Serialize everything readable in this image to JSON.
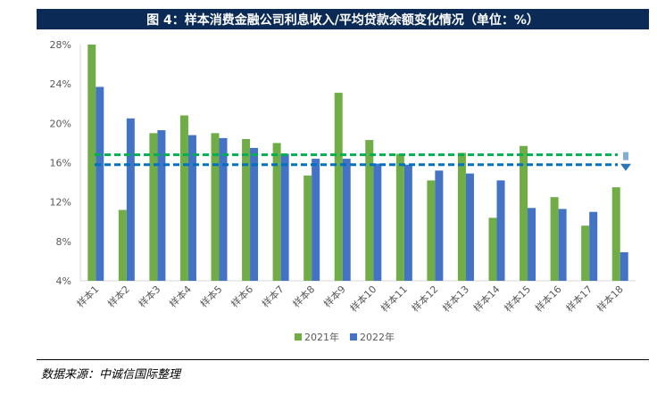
{
  "title": "图 4：样本消费金融公司利息收入/平均贷款余额变化情况（单位：%）",
  "source": "数据来源：中诚信国际整理",
  "colors": {
    "series_2021": "#70ad47",
    "series_2022": "#4472c4",
    "line_green": "#00b050",
    "line_blue": "#0070c0",
    "arrow": "#2e75b6",
    "axis": "#d9d9d9",
    "title_bg": "#0b2a55"
  },
  "chart_data": {
    "type": "bar",
    "categories": [
      "样本1",
      "样本2",
      "样本3",
      "样本4",
      "样本5",
      "样本6",
      "样本7",
      "样本8",
      "样本9",
      "样本10",
      "样本11",
      "样本12",
      "样本13",
      "样本14",
      "样本15",
      "样本16",
      "样本17",
      "样本18"
    ],
    "series": [
      {
        "name": "2021年",
        "values": [
          28.0,
          11.2,
          19.0,
          20.8,
          19.0,
          18.4,
          18.0,
          14.7,
          23.1,
          18.3,
          16.9,
          14.2,
          17.0,
          10.4,
          17.7,
          12.5,
          9.6,
          13.5
        ]
      },
      {
        "name": "2022年",
        "values": [
          23.7,
          20.5,
          19.3,
          18.8,
          18.5,
          17.5,
          16.9,
          16.4,
          16.4,
          15.9,
          15.8,
          15.2,
          14.9,
          14.2,
          11.4,
          11.3,
          11.0,
          6.9
        ]
      }
    ],
    "reference_lines": [
      {
        "value": 16.8,
        "style": "dashed",
        "color": "green"
      },
      {
        "value": 15.8,
        "style": "dashed",
        "color": "blue"
      }
    ],
    "yticks": [
      "4%",
      "8%",
      "12%",
      "16%",
      "20%",
      "24%",
      "28%"
    ],
    "ylim": [
      4,
      28
    ],
    "legend_position": "bottom-center",
    "grid": false
  }
}
